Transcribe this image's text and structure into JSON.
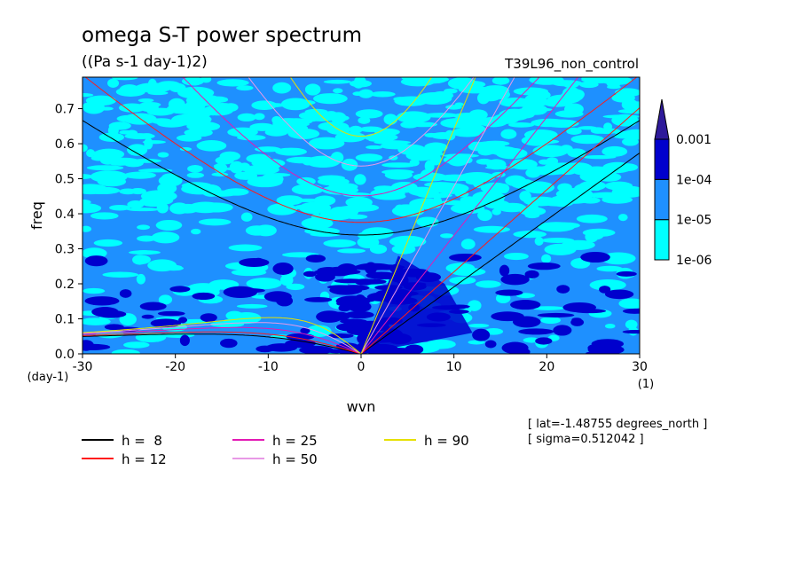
{
  "chart_data": {
    "type": "heatmap",
    "title": "omega S-T power spectrum",
    "subtitle": "((Pa s-1 day-1)2)",
    "run_label": "T39L96_non_control",
    "xlabel": "wvn",
    "ylabel": "freq",
    "x_unit": "(1)",
    "y_unit": "(day-1)",
    "xlim": [
      -30,
      30
    ],
    "ylim": [
      0,
      0.79
    ],
    "xticks": [
      -30,
      -20,
      -10,
      0,
      10,
      20,
      30
    ],
    "yticks": [
      0.0,
      0.1,
      0.2,
      0.3,
      0.4,
      0.5,
      0.6,
      0.7
    ],
    "xtick_labels": [
      "-30",
      "-20",
      "-10",
      "0",
      "10",
      "20",
      "30"
    ],
    "ytick_labels": [
      "0.0",
      "0.1",
      "0.2",
      "0.3",
      "0.4",
      "0.5",
      "0.6",
      "0.7"
    ],
    "colorbar": {
      "levels": [
        "1e-06",
        "1e-05",
        "1e-04",
        "0.001"
      ],
      "colors": [
        "#00ffff",
        "#1e90ff",
        "#0000cd",
        "#2e1a9a"
      ]
    },
    "curves": [
      {
        "name": "h =  8",
        "h": 8,
        "color": "#000000"
      },
      {
        "name": "h = 12",
        "h": 12,
        "color": "#ff1a1a"
      },
      {
        "name": "h = 25",
        "h": 25,
        "color": "#e31ab4"
      },
      {
        "name": "h = 50",
        "h": 50,
        "color": "#e899e6"
      },
      {
        "name": "h = 90",
        "h": 90,
        "color": "#e6e000"
      }
    ],
    "annotations": [
      "[ lat=-1.48755 degrees_north ]",
      "[ sigma=0.512042 ]"
    ]
  }
}
